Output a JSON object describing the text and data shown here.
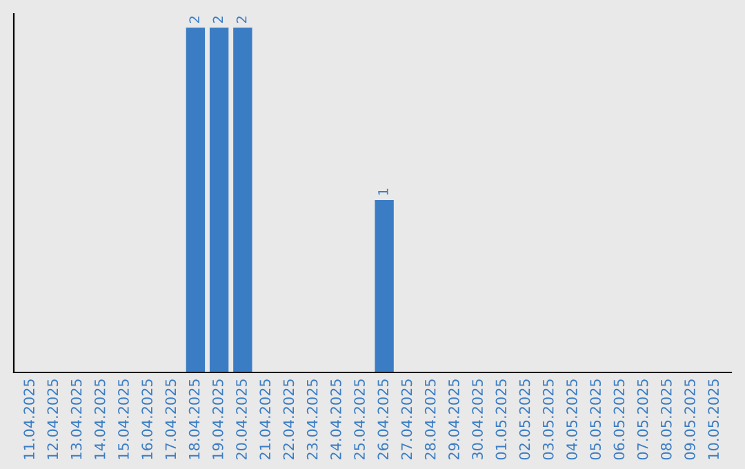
{
  "chart_data": {
    "type": "bar",
    "categories": [
      "11.04.2025",
      "12.04.2025",
      "13.04.2025",
      "14.04.2025",
      "15.04.2025",
      "16.04.2025",
      "17.04.2025",
      "18.04.2025",
      "19.04.2025",
      "20.04.2025",
      "21.04.2025",
      "22.04.2025",
      "23.04.2025",
      "24.04.2025",
      "25.04.2025",
      "26.04.2025",
      "27.04.2025",
      "28.04.2025",
      "29.04.2025",
      "30.04.2025",
      "01.05.2025",
      "02.05.2025",
      "03.05.2025",
      "04.05.2025",
      "05.05.2025",
      "06.05.2025",
      "07.05.2025",
      "08.05.2025",
      "09.05.2025",
      "10.05.2025"
    ],
    "values": [
      0,
      0,
      0,
      0,
      0,
      0,
      0,
      2,
      2,
      2,
      0,
      0,
      0,
      0,
      0,
      1,
      0,
      0,
      0,
      0,
      0,
      0,
      0,
      0,
      0,
      0,
      0,
      0,
      0,
      0
    ],
    "value_labels": [
      null,
      null,
      null,
      null,
      null,
      null,
      null,
      "2",
      "2",
      "2",
      null,
      null,
      null,
      null,
      null,
      "1",
      null,
      null,
      null,
      null,
      null,
      null,
      null,
      null,
      null,
      null,
      null,
      null,
      null,
      null
    ],
    "color": "#3b7dc4",
    "ylim": [
      0,
      2.08
    ],
    "tick_labels": "x",
    "grid": false,
    "legend": false
  }
}
